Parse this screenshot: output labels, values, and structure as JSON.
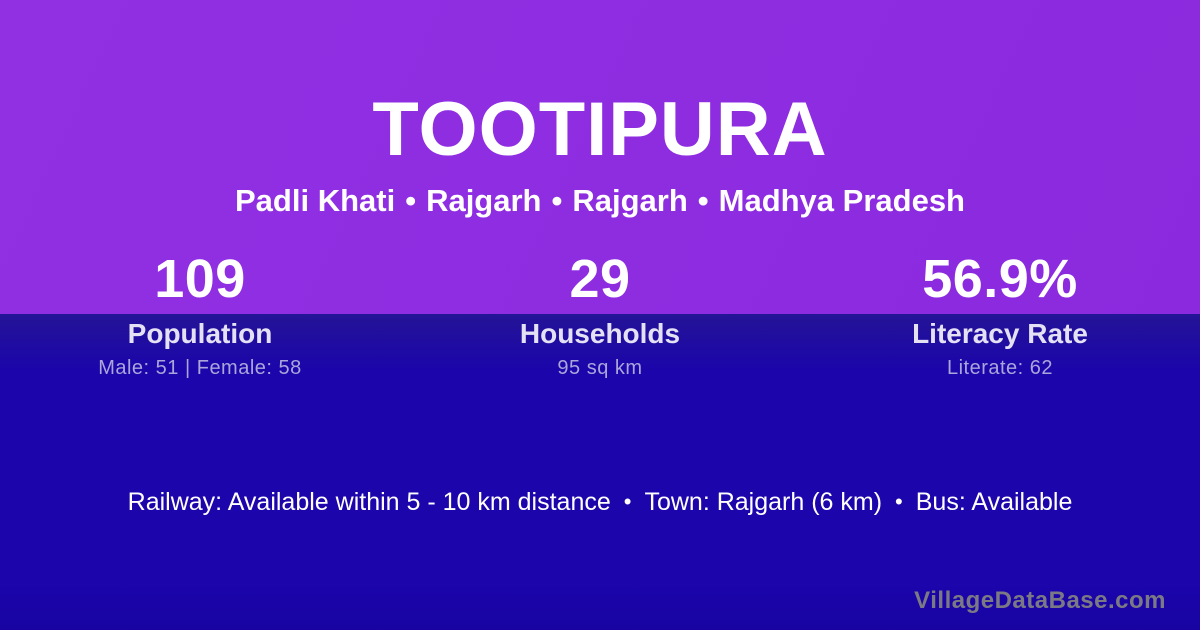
{
  "colors": {
    "top_bg_start": "#9130e3",
    "top_bg_end": "#8b29de",
    "bottom_bg_top": "#241496",
    "bottom_bg_main": "#1b05ab",
    "bottom_bg_edge": "#1803a2",
    "label_text": "#e4e1f4",
    "substat_text": "#aba5da",
    "watermark_text": "#7b7a84"
  },
  "header": {
    "village_name": "TOOTIPURA",
    "breadcrumb": {
      "separator": "•",
      "parts": [
        "Padli Khati",
        "Rajgarh",
        "Rajgarh",
        "Madhya Pradesh"
      ]
    }
  },
  "stats": [
    {
      "value": "109",
      "label": "Population",
      "detail": "Male: 51 | Female: 58"
    },
    {
      "value": "29",
      "label": "Households",
      "detail": "95 sq km"
    },
    {
      "value": "56.9%",
      "label": "Literacy Rate",
      "detail": "Literate: 62"
    }
  ],
  "footer": {
    "separator": "•",
    "items": [
      "Railway: Available within 5 - 10 km distance",
      "Town: Rajgarh (6 km)",
      "Bus: Available"
    ]
  },
  "watermark": "VillageDataBase.com"
}
